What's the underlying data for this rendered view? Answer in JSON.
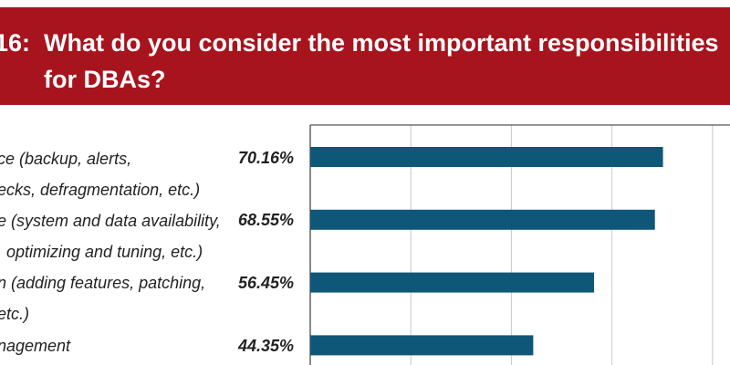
{
  "header": {
    "number": "16:",
    "title_line1": "What do you consider the most important responsibilities",
    "title_line2": "for DBAs?"
  },
  "colors": {
    "banner": "#a7141d",
    "bar": "#0f5778",
    "grid": "#c8c8c8"
  },
  "chart_data": {
    "type": "bar",
    "orientation": "horizontal",
    "title": "What do you consider the most important responsibilities for DBAs?",
    "categories": [
      {
        "line1": "ce (backup, alerts,",
        "line2": "ecks, defragmentation, etc.)"
      },
      {
        "line1": "e (system and data availability,",
        "line2": ", optimizing and tuning, etc.)"
      },
      {
        "line1": "n (adding features, patching,",
        "line2": "etc.)"
      },
      {
        "line1": "nagement",
        "line2": ""
      }
    ],
    "values": [
      70.16,
      68.55,
      56.45,
      44.35
    ],
    "value_labels": [
      "70.16%",
      "68.55%",
      "56.45%",
      "44.35%"
    ],
    "xlim": [
      0,
      100
    ],
    "grid": true
  }
}
